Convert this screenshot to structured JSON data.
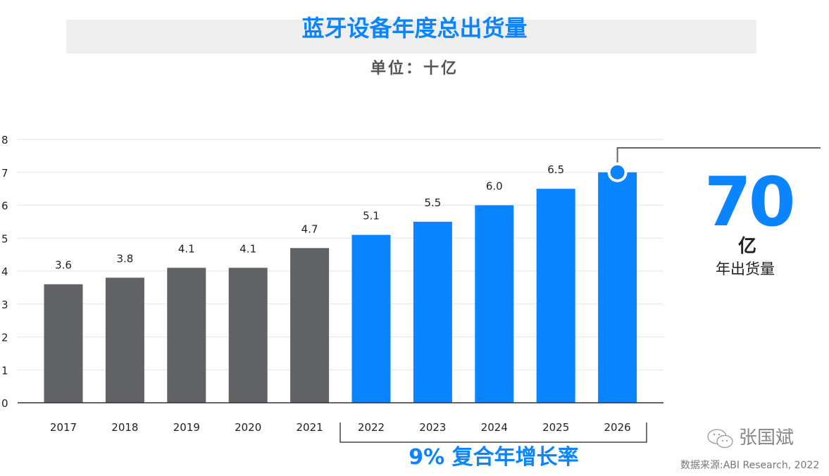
{
  "title": "蓝牙设备年度总出货量",
  "subtitle": "单位：十亿",
  "callout": {
    "value": "70",
    "unit": "亿",
    "caption": "年出货量"
  },
  "cagr_label": "9% 复合年增长率",
  "watermark": "张国斌",
  "source": "数据来源:ABI Research, 2022",
  "colors": {
    "historical": "#616266",
    "forecast": "#0a84ff",
    "accent": "#0a84ff"
  },
  "chart_data": {
    "type": "bar",
    "title": "蓝牙设备年度总出货量",
    "categories": [
      "2017",
      "2018",
      "2019",
      "2020",
      "2021",
      "2022",
      "2023",
      "2024",
      "2025",
      "2026"
    ],
    "values": [
      3.6,
      3.8,
      4.1,
      4.1,
      4.7,
      5.1,
      5.5,
      6.0,
      6.5,
      7.0
    ],
    "data_labels": [
      "3.6",
      "3.8",
      "4.1",
      "4.1",
      "4.7",
      "5.1",
      "5.5",
      "6.0",
      "6.5",
      ""
    ],
    "bar_colors": [
      "#616266",
      "#616266",
      "#616266",
      "#616266",
      "#616266",
      "#0a84ff",
      "#0a84ff",
      "#0a84ff",
      "#0a84ff",
      "#0a84ff"
    ],
    "yticks": [
      "0",
      "1",
      "2",
      "3",
      "4",
      "5",
      "6",
      "7",
      "8"
    ],
    "ylim": [
      0,
      8
    ],
    "grid": true,
    "xlabel": "",
    "ylabel": ""
  }
}
